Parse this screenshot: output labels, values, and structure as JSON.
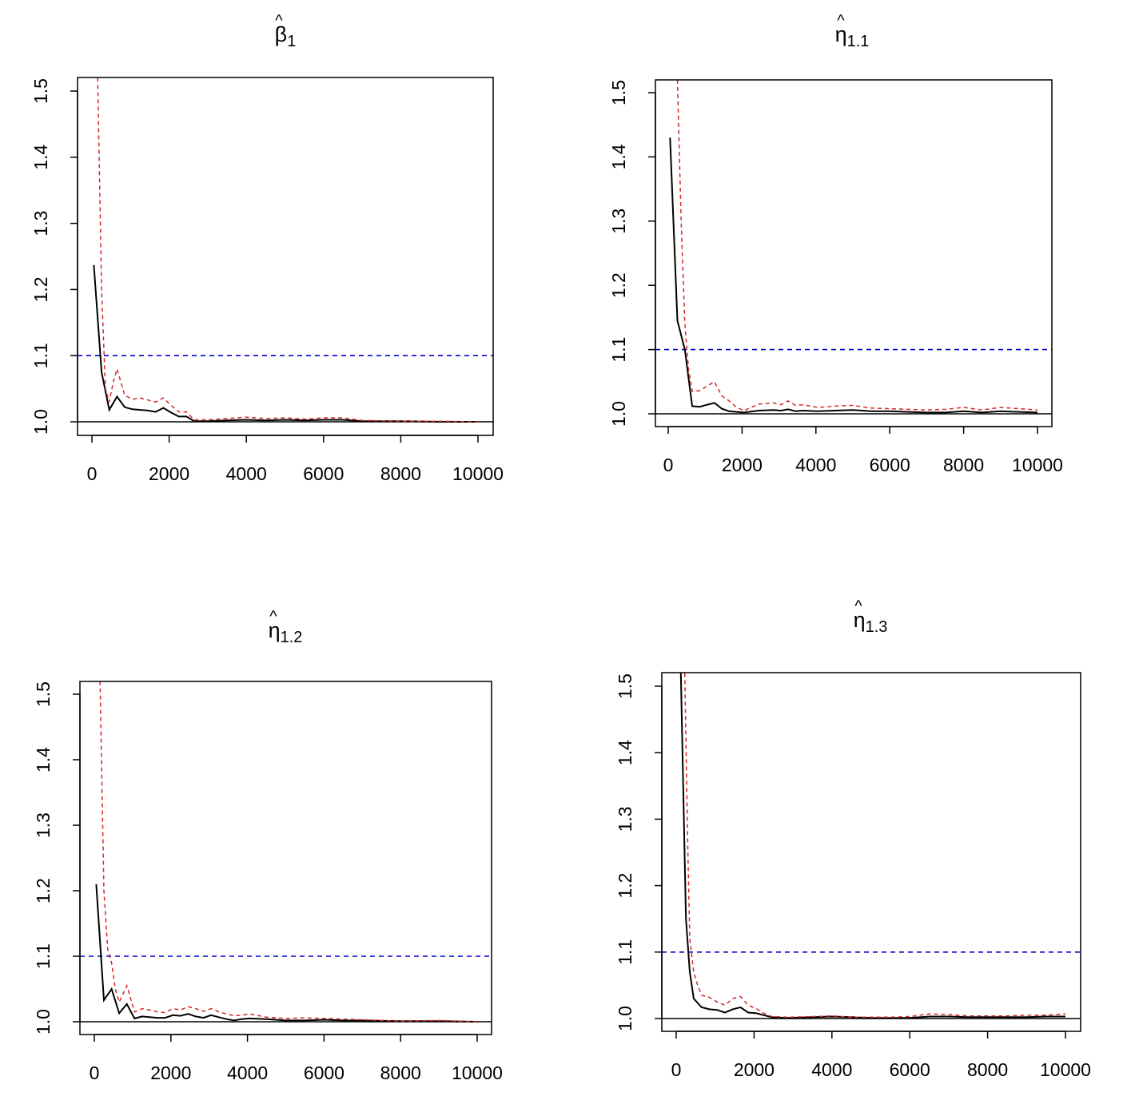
{
  "chart_data": [
    {
      "type": "line",
      "title": "β",
      "title_hat": "^",
      "title_subscript": "1",
      "xlabel": "",
      "ylabel": "",
      "xlim": [
        0,
        10000
      ],
      "ylim": [
        1.0,
        1.5
      ],
      "x_ticks": [
        "0",
        "2000",
        "4000",
        "6000",
        "8000",
        "10000"
      ],
      "y_ticks": [
        "1.0",
        "1.1",
        "1.2",
        "1.3",
        "1.4",
        "1.5"
      ],
      "reference_lines": [
        {
          "y": 1.0,
          "color": "#000000",
          "style": "solid"
        },
        {
          "y": 1.1,
          "color": "#0000cc",
          "style": "dashed"
        }
      ],
      "series": [
        {
          "color": "#000000",
          "style": "solid",
          "x": [
            50,
            250,
            450,
            650,
            850,
            1050,
            1250,
            1450,
            1650,
            1850,
            2050,
            2250,
            2450,
            2650,
            3000,
            3500,
            4000,
            4500,
            5000,
            5500,
            6000,
            6500,
            7000,
            8000,
            9000,
            10000
          ],
          "y": [
            1.237,
            1.075,
            1.018,
            1.038,
            1.022,
            1.019,
            1.018,
            1.017,
            1.015,
            1.021,
            1.014,
            1.008,
            1.008,
            1.001,
            1.001,
            1.002,
            1.003,
            1.002,
            1.003,
            1.002,
            1.003,
            1.003,
            1.001,
            1.001,
            1.0,
            1.0
          ]
        },
        {
          "color": "#d62728",
          "style": "dashed",
          "x": [
            150,
            250,
            350,
            450,
            550,
            650,
            850,
            1050,
            1250,
            1450,
            1650,
            1850,
            2050,
            2250,
            2450,
            2650,
            3000,
            3500,
            4000,
            4500,
            5000,
            5500,
            6000,
            6500,
            7000,
            8000,
            9000,
            10000
          ],
          "y": [
            1.52,
            1.2,
            1.05,
            1.03,
            1.06,
            1.08,
            1.04,
            1.034,
            1.036,
            1.033,
            1.03,
            1.036,
            1.025,
            1.015,
            1.015,
            1.003,
            1.003,
            1.005,
            1.007,
            1.005,
            1.006,
            1.004,
            1.006,
            1.006,
            1.002,
            1.001,
            1.001,
            1.0
          ]
        }
      ]
    },
    {
      "type": "line",
      "title": "η",
      "title_hat": "^",
      "title_subscript": "1.1",
      "xlabel": "",
      "ylabel": "",
      "xlim": [
        0,
        10000
      ],
      "ylim": [
        1.0,
        1.5
      ],
      "x_ticks": [
        "0",
        "2000",
        "4000",
        "6000",
        "8000",
        "10000"
      ],
      "y_ticks": [
        "1.0",
        "1.1",
        "1.2",
        "1.3",
        "1.4",
        "1.5"
      ],
      "reference_lines": [
        {
          "y": 1.0,
          "color": "#000000",
          "style": "solid"
        },
        {
          "y": 1.1,
          "color": "#0000cc",
          "style": "dashed"
        }
      ],
      "series": [
        {
          "color": "#000000",
          "style": "solid",
          "x": [
            50,
            250,
            450,
            650,
            850,
            1050,
            1250,
            1450,
            1650,
            1850,
            2050,
            2450,
            2850,
            3050,
            3250,
            3450,
            3650,
            4050,
            4500,
            5000,
            5500,
            6000,
            6500,
            7000,
            7500,
            8000,
            8500,
            9000,
            9500,
            10000
          ],
          "y": [
            1.43,
            1.145,
            1.1,
            1.012,
            1.011,
            1.014,
            1.017,
            1.008,
            1.004,
            1.003,
            1.002,
            1.005,
            1.006,
            1.005,
            1.007,
            1.004,
            1.005,
            1.004,
            1.005,
            1.006,
            1.004,
            1.004,
            1.003,
            1.002,
            1.002,
            1.004,
            1.002,
            1.004,
            1.003,
            1.002
          ]
        },
        {
          "color": "#d62728",
          "style": "dashed",
          "x": [
            250,
            350,
            450,
            550,
            650,
            850,
            1050,
            1250,
            1450,
            1650,
            1850,
            2050,
            2450,
            2850,
            3050,
            3250,
            3450,
            3650,
            4050,
            4500,
            5000,
            5500,
            6000,
            6500,
            7000,
            7500,
            8000,
            8500,
            9000,
            9500,
            10000
          ],
          "y": [
            1.52,
            1.3,
            1.14,
            1.07,
            1.035,
            1.036,
            1.043,
            1.05,
            1.028,
            1.02,
            1.01,
            1.005,
            1.015,
            1.017,
            1.014,
            1.02,
            1.013,
            1.014,
            1.01,
            1.012,
            1.013,
            1.009,
            1.008,
            1.007,
            1.006,
            1.007,
            1.01,
            1.006,
            1.01,
            1.008,
            1.006
          ]
        }
      ]
    },
    {
      "type": "line",
      "title": "η",
      "title_hat": "^",
      "title_subscript": "1.2",
      "xlabel": "",
      "ylabel": "",
      "xlim": [
        0,
        10000
      ],
      "ylim": [
        1.0,
        1.5
      ],
      "x_ticks": [
        "0",
        "2000",
        "4000",
        "6000",
        "8000",
        "10000"
      ],
      "y_ticks": [
        "1.0",
        "1.1",
        "1.2",
        "1.3",
        "1.4",
        "1.5"
      ],
      "reference_lines": [
        {
          "y": 1.0,
          "color": "#000000",
          "style": "solid"
        },
        {
          "y": 1.1,
          "color": "#0000cc",
          "style": "dashed"
        }
      ],
      "series": [
        {
          "color": "#000000",
          "style": "solid",
          "x": [
            50,
            250,
            450,
            650,
            850,
            1050,
            1250,
            1450,
            1650,
            1850,
            2050,
            2250,
            2450,
            2650,
            2850,
            3050,
            3250,
            3450,
            3650,
            3850,
            4050,
            4500,
            5000,
            5500,
            6000,
            6500,
            7000,
            8000,
            9000,
            10000
          ],
          "y": [
            1.21,
            1.033,
            1.05,
            1.013,
            1.027,
            1.005,
            1.008,
            1.007,
            1.006,
            1.006,
            1.01,
            1.009,
            1.012,
            1.008,
            1.006,
            1.01,
            1.007,
            1.004,
            1.002,
            1.004,
            1.005,
            1.004,
            1.002,
            1.002,
            1.003,
            1.002,
            1.002,
            1.001,
            1.001,
            1.0
          ]
        },
        {
          "color": "#d62728",
          "style": "dashed",
          "x": [
            150,
            250,
            350,
            450,
            550,
            650,
            850,
            1050,
            1250,
            1450,
            1650,
            1850,
            2050,
            2250,
            2450,
            2650,
            2850,
            3050,
            3250,
            3450,
            3650,
            3850,
            4050,
            4500,
            5000,
            5500,
            6000,
            6500,
            7000,
            7500,
            8000,
            9000,
            10000
          ],
          "y": [
            1.52,
            1.2,
            1.11,
            1.09,
            1.05,
            1.03,
            1.055,
            1.015,
            1.02,
            1.018,
            1.015,
            1.014,
            1.02,
            1.018,
            1.023,
            1.02,
            1.016,
            1.02,
            1.015,
            1.012,
            1.009,
            1.01,
            1.012,
            1.007,
            1.005,
            1.006,
            1.005,
            1.004,
            1.003,
            1.002,
            1.001,
            1.002,
            1.0
          ]
        }
      ]
    },
    {
      "type": "line",
      "title": "η",
      "title_hat": "^",
      "title_subscript": "1.3",
      "xlabel": "",
      "ylabel": "",
      "xlim": [
        0,
        10000
      ],
      "ylim": [
        1.0,
        1.5
      ],
      "x_ticks": [
        "0",
        "2000",
        "4000",
        "6000",
        "8000",
        "10000"
      ],
      "y_ticks": [
        "1.0",
        "1.1",
        "1.2",
        "1.3",
        "1.4",
        "1.5"
      ],
      "reference_lines": [
        {
          "y": 1.0,
          "color": "#000000",
          "style": "solid"
        },
        {
          "y": 1.1,
          "color": "#0000cc",
          "style": "dashed"
        }
      ],
      "series": [
        {
          "color": "#000000",
          "style": "solid",
          "x": [
            120,
            250,
            350,
            450,
            650,
            850,
            1050,
            1250,
            1450,
            1650,
            1850,
            2050,
            2250,
            2450,
            2850,
            3500,
            4000,
            4500,
            5000,
            5500,
            6000,
            6500,
            7000,
            7500,
            8000,
            8500,
            9000,
            9500,
            10000
          ],
          "y": [
            1.52,
            1.15,
            1.07,
            1.03,
            1.017,
            1.014,
            1.013,
            1.009,
            1.014,
            1.017,
            1.009,
            1.008,
            1.005,
            1.002,
            1.001,
            1.002,
            1.003,
            1.002,
            1.001,
            1.001,
            1.001,
            1.003,
            1.003,
            1.002,
            1.002,
            1.002,
            1.002,
            1.003,
            1.003
          ]
        },
        {
          "color": "#d62728",
          "style": "dashed",
          "x": [
            220,
            300,
            350,
            450,
            550,
            650,
            850,
            1050,
            1250,
            1450,
            1650,
            1850,
            2050,
            2250,
            2450,
            2850,
            3500,
            4000,
            4500,
            5000,
            5500,
            6000,
            6500,
            7000,
            7500,
            8000,
            8500,
            9000,
            9500,
            10000
          ],
          "y": [
            1.52,
            1.25,
            1.12,
            1.07,
            1.05,
            1.035,
            1.032,
            1.025,
            1.02,
            1.03,
            1.033,
            1.02,
            1.015,
            1.008,
            1.003,
            1.002,
            1.003,
            1.004,
            1.002,
            1.002,
            1.002,
            1.003,
            1.007,
            1.006,
            1.004,
            1.004,
            1.004,
            1.005,
            1.005,
            1.007
          ]
        }
      ]
    }
  ]
}
